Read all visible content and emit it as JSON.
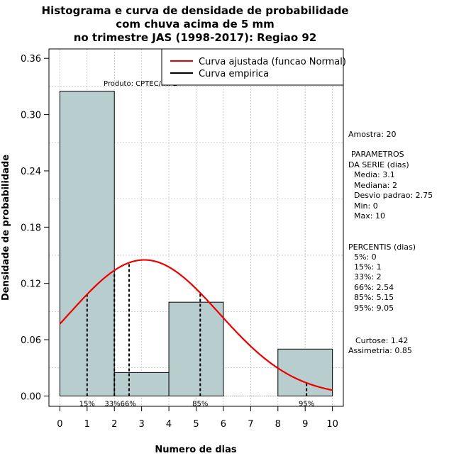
{
  "chart_data": {
    "type": "bar",
    "title": [
      "Histograma e curva de densidade de probabilidade",
      "com chuva acima de 5 mm",
      "no trimestre JAS (1998-2017): Regiao 92"
    ],
    "xlabel": "Numero de dias",
    "ylabel": "Densidade de probabilidade",
    "xlim": [
      -0.4,
      10.4
    ],
    "ylim": [
      -0.011,
      0.37
    ],
    "x_ticks": [
      "0",
      "1",
      "2",
      "3",
      "4",
      "5",
      "6",
      "7",
      "8",
      "9",
      "10"
    ],
    "y_ticks": [
      "0.00",
      "0.06",
      "0.12",
      "0.18",
      "0.24",
      "0.30",
      "0.36"
    ],
    "grid": true,
    "bars": [
      {
        "x0": 0,
        "x1": 2,
        "value": 0.325
      },
      {
        "x0": 2,
        "x1": 4,
        "value": 0.025
      },
      {
        "x0": 4,
        "x1": 6,
        "value": 0.1
      },
      {
        "x0": 6,
        "x1": 8,
        "value": 0
      },
      {
        "x0": 8,
        "x1": 10,
        "value": 0.05
      }
    ],
    "fitted_curve": {
      "name": "Curva ajustada (funcao Normal)",
      "distribution": "normal",
      "mean": 3.1,
      "sd": 2.75,
      "scale": 1.0,
      "x_range": [
        0,
        10
      ],
      "color": "#ee0000"
    },
    "empirical_curve": {
      "name": "Curva empirica",
      "color": "#000000"
    },
    "percentile_lines": [
      {
        "label": "15%",
        "x": 1
      },
      {
        "label": "33%",
        "x": 2
      },
      {
        "label": "66%",
        "x": 2.54
      },
      {
        "label": "85%",
        "x": 5.15
      },
      {
        "label": "95%",
        "x": 9.05
      }
    ],
    "legend": {
      "placement": "top-right",
      "entries": [
        "Curva ajustada (funcao Normal)",
        "Curva empirica"
      ]
    },
    "annotation": "Produto: CPTEC/INPE"
  },
  "side_panel": {
    "sample": "Amostra: 20",
    "params_header": [
      "PARAMETROS",
      "DA SERIE (dias)"
    ],
    "params": [
      "Media: 3.1",
      "Mediana: 2",
      "Desvio padrao: 2.75",
      "Min: 0",
      "Max: 10"
    ],
    "percentis_header": "PERCENTIS (dias)",
    "percentis": [
      "5%: 0",
      "15%: 1",
      "33%: 2",
      "66%: 2.54",
      "85%: 5.15",
      "95%: 9.05"
    ],
    "kurtosis": "Curtose: 1.42",
    "skewness": "Assimetria: 0.85"
  },
  "colors": {
    "bar_fill": "#b8cece",
    "grid": "#bdbdbd",
    "fitted": "#ee0000",
    "axis": "#000000"
  }
}
